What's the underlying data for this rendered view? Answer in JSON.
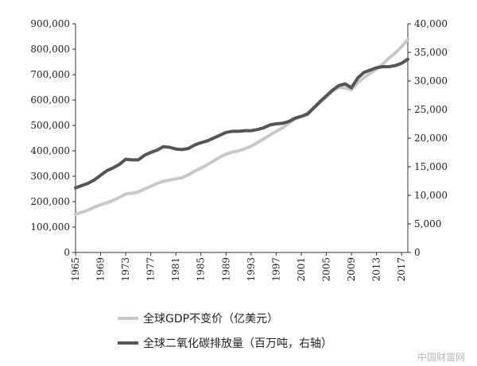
{
  "chart_data": {
    "type": "line",
    "x": [
      1965,
      1966,
      1967,
      1968,
      1969,
      1970,
      1971,
      1972,
      1973,
      1974,
      1975,
      1976,
      1977,
      1978,
      1979,
      1980,
      1981,
      1982,
      1983,
      1984,
      1985,
      1986,
      1987,
      1988,
      1989,
      1990,
      1991,
      1992,
      1993,
      1994,
      1995,
      1996,
      1997,
      1998,
      1999,
      2000,
      2001,
      2002,
      2003,
      2004,
      2005,
      2006,
      2007,
      2008,
      2009,
      2010,
      2011,
      2012,
      2013,
      2014,
      2015,
      2016,
      2017,
      2018
    ],
    "xticks": [
      "1965",
      "1969",
      "1973",
      "1977",
      "1981",
      "1985",
      "1989",
      "1993",
      "1997",
      "2001",
      "2005",
      "2009",
      "2013",
      "2017"
    ],
    "y_left_ticks": [
      "0",
      "100,000",
      "200,000",
      "300,000",
      "400,000",
      "500,000",
      "600,000",
      "700,000",
      "800,000",
      "900,000"
    ],
    "y_right_ticks": [
      "0",
      "5,000",
      "10,000",
      "15,000",
      "20,000",
      "25,000",
      "30,000",
      "35,000",
      "40,000"
    ],
    "ylim_left": [
      0,
      900000
    ],
    "ylim_right": [
      0,
      40000
    ],
    "grid": false,
    "legend_position": "bottom",
    "series": [
      {
        "name": "全球GDP不变价（亿美元）",
        "axis": "left",
        "color": "#c8c8c8",
        "values": [
          150000,
          158000,
          167000,
          178000,
          188000,
          195000,
          205000,
          217000,
          230000,
          233000,
          238000,
          250000,
          260000,
          272000,
          280000,
          285000,
          290000,
          294000,
          306000,
          320000,
          332000,
          345000,
          360000,
          375000,
          387000,
          395000,
          400000,
          408000,
          418000,
          432000,
          447000,
          462000,
          477000,
          490000,
          508000,
          525000,
          535000,
          548000,
          568000,
          590000,
          612000,
          635000,
          650000,
          648000,
          640000,
          668000,
          688000,
          705000,
          722000,
          742000,
          765000,
          785000,
          810000,
          838000
        ]
      },
      {
        "name": "全球二氧化碳排放量（百万吨，右轴）",
        "axis": "right",
        "color": "#555555",
        "values": [
          11300,
          11700,
          12100,
          12700,
          13500,
          14300,
          14800,
          15400,
          16300,
          16200,
          16200,
          17000,
          17500,
          17900,
          18500,
          18400,
          18100,
          18000,
          18200,
          18800,
          19200,
          19500,
          20000,
          20500,
          21000,
          21200,
          21200,
          21300,
          21300,
          21500,
          21800,
          22300,
          22500,
          22600,
          22900,
          23500,
          23800,
          24200,
          25300,
          26400,
          27400,
          28400,
          29200,
          29500,
          28800,
          30500,
          31500,
          31900,
          32300,
          32500,
          32500,
          32700,
          33100,
          33800
        ]
      }
    ]
  },
  "watermark": "中国财富网"
}
